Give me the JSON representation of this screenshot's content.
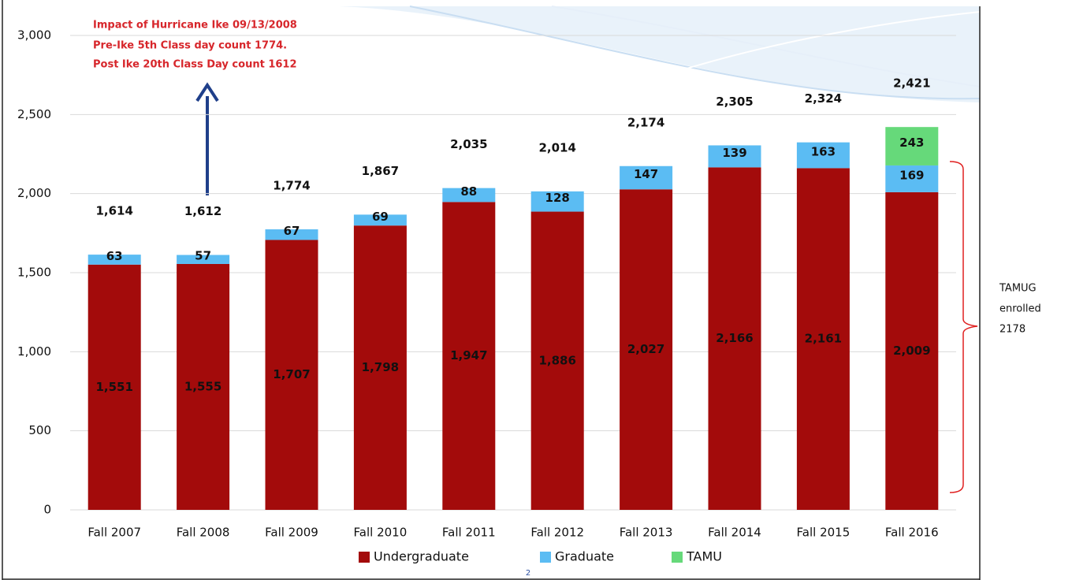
{
  "chart_data": {
    "type": "stacked-bar",
    "categories": [
      "Fall 2007",
      "Fall 2008",
      "Fall 2009",
      "Fall 2010",
      "Fall 2011",
      "Fall 2012",
      "Fall 2013",
      "Fall 2014",
      "Fall 2015",
      "Fall 2016"
    ],
    "series": [
      {
        "name": "Undergraduate",
        "color": "#a30b0b",
        "values": [
          1551,
          1555,
          1707,
          1798,
          1947,
          1886,
          2027,
          2166,
          2161,
          2009
        ],
        "value_labels": [
          "1,551",
          "1,555",
          "1,707",
          "1,798",
          "1,947",
          "1,886",
          "2,027",
          "2,166",
          "2,161",
          "2,009"
        ]
      },
      {
        "name": "Graduate",
        "color": "#5bbcf3",
        "values": [
          63,
          57,
          67,
          69,
          88,
          128,
          147,
          139,
          163,
          169
        ]
      },
      {
        "name": "TAMU",
        "color": "#66d97a",
        "values": [
          null,
          null,
          null,
          null,
          null,
          null,
          null,
          null,
          null,
          243
        ]
      }
    ],
    "totals": {
      "values": [
        1614,
        1612,
        1774,
        1867,
        2035,
        2014,
        2174,
        2305,
        2324,
        2421
      ],
      "value_labels": [
        "1,614",
        "1,612",
        "1,774",
        "1,867",
        "2,035",
        "2,014",
        "2,174",
        "2,305",
        "2,324",
        "2,421"
      ]
    },
    "ylim": [
      0,
      3000
    ],
    "yticks": [
      0,
      500,
      {
        "value": 1000,
        "label": "1,000"
      },
      {
        "value": 1500,
        "label": "1,500"
      },
      {
        "value": 2000,
        "label": "2,000"
      },
      {
        "value": 2500,
        "label": "2,500"
      },
      {
        "value": 3000,
        "label": "3,000"
      }
    ],
    "grid": true,
    "legend": "bottom",
    "annotation": [
      "Impact of Hurricane Ike 09/13/2008",
      "Pre-Ike 5th Class day count 1774.",
      "Post Ike 20th Class Day count 1612"
    ],
    "bracket_note": [
      "TAMUG",
      "enrolled",
      "2178"
    ],
    "page_number": "2"
  }
}
